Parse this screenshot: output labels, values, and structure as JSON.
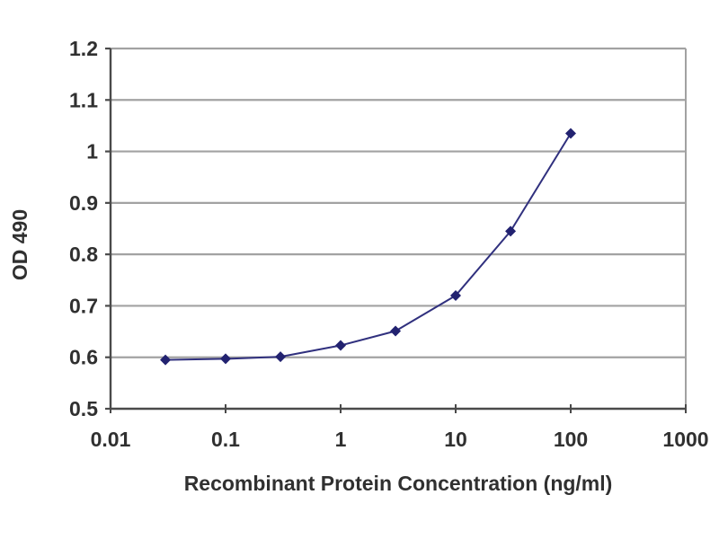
{
  "chart_data": {
    "type": "line",
    "title": "",
    "xlabel": "Recombinant Protein Concentration (ng/ml)",
    "ylabel": "OD 490",
    "x_scale": "log",
    "xlim": [
      0.01,
      1000
    ],
    "ylim": [
      0.5,
      1.2
    ],
    "x": [
      0.03,
      0.1,
      0.3,
      1,
      3,
      10,
      30,
      100
    ],
    "y": [
      0.595,
      0.597,
      0.601,
      0.623,
      0.651,
      0.72,
      0.845,
      1.035
    ],
    "xticks": [
      0.01,
      0.1,
      1,
      10,
      100,
      1000
    ],
    "xtick_labels": [
      "0.01",
      "0.1",
      "1",
      "10",
      "100",
      "1000"
    ],
    "yticks": [
      0.5,
      0.6,
      0.7,
      0.8,
      0.9,
      1.0,
      1.1,
      1.2
    ],
    "ytick_labels": [
      "0.5",
      "0.6",
      "0.7",
      "0.8",
      "0.9",
      "1",
      "1.1",
      "1.2"
    ],
    "grid": "horizontal",
    "legend": "none",
    "marker": "diamond",
    "colors": {
      "line": "#30307e",
      "marker": "#222270",
      "grid": "#a2a2a2",
      "axis": "#4a4a4a",
      "frame": "#a2a2a2",
      "text": "#303030",
      "background": "#ffffff"
    }
  }
}
